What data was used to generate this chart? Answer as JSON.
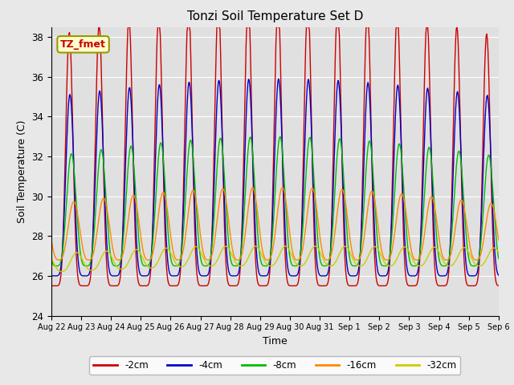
{
  "title": "Tonzi Soil Temperature Set D",
  "xlabel": "Time",
  "ylabel": "Soil Temperature (C)",
  "ylim": [
    24,
    38.5
  ],
  "series_labels": [
    "-2cm",
    "-4cm",
    "-8cm",
    "-16cm",
    "-32cm"
  ],
  "series_colors": [
    "#cc0000",
    "#0000cc",
    "#00bb00",
    "#ff8800",
    "#cccc00"
  ],
  "label_box_facecolor": "#ffffcc",
  "label_box_edgecolor": "#999900",
  "label_box_text": "TZ_fmet",
  "label_box_textcolor": "#cc0000",
  "xtick_labels": [
    "Aug 22",
    "Aug 23",
    "Aug 24",
    "Aug 25",
    "Aug 26",
    "Aug 27",
    "Aug 28",
    "Aug 29",
    "Aug 30",
    "Aug 31",
    "Sep 1",
    "Sep 2",
    "Sep 3",
    "Sep 4",
    "Sep 5",
    "Sep 6"
  ],
  "ytick_values": [
    24,
    26,
    28,
    30,
    32,
    34,
    36,
    38
  ],
  "n_days": 15,
  "points_per_day": 48,
  "bg_color": "#e8e8e8",
  "plot_bg": "#e0e0e0",
  "grid_color": "#ffffff"
}
